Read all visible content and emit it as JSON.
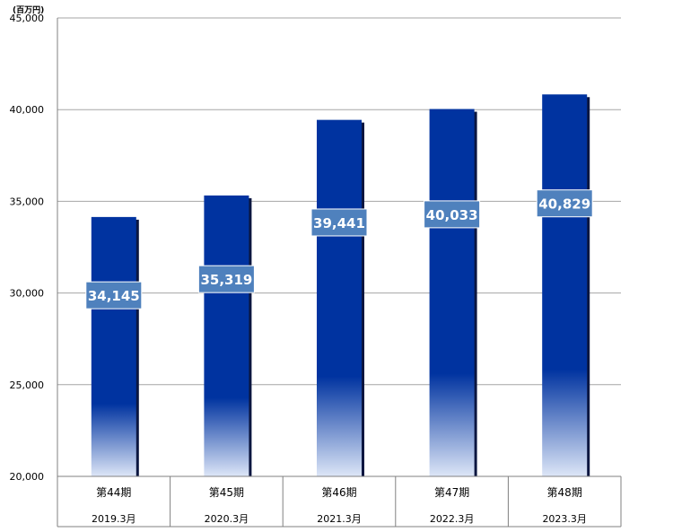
{
  "unit_label": "(百万円)",
  "chart_data": {
    "type": "bar",
    "categories": [
      "第44期",
      "第45期",
      "第46期",
      "第47期",
      "第48期"
    ],
    "sub_categories": [
      "2019.3月",
      "2020.3月",
      "2021.3月",
      "2022.3月",
      "2023.3月"
    ],
    "values": [
      34145,
      35319,
      39441,
      40033,
      40829
    ],
    "value_labels": [
      "34,145",
      "35,319",
      "39,441",
      "40,033",
      "40,829"
    ],
    "ylim": [
      20000,
      45000
    ],
    "yticks": [
      20000,
      25000,
      30000,
      35000,
      40000,
      45000
    ],
    "ytick_labels": [
      "20,000",
      "25,000",
      "30,000",
      "35,000",
      "40,000",
      "45,000"
    ],
    "grid": true,
    "colors": {
      "bar": "#0033A0",
      "bar_shadow": "#0B1640",
      "label_bg": "#4F81BD",
      "label_text": "#FFFFFF",
      "grid": "#A6A6A6",
      "axis": "#808080",
      "text": "#000000"
    }
  }
}
